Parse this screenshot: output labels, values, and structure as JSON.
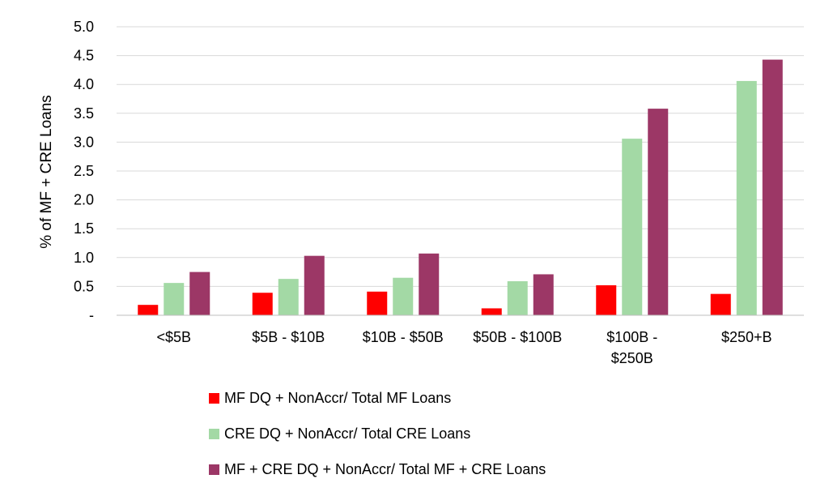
{
  "chart_data": {
    "type": "bar",
    "title": "",
    "xlabel": "",
    "ylabel": "% of MF + CRE Loans",
    "ylim": [
      0,
      5
    ],
    "y_ticks": [
      "-",
      "0.5",
      "1.0",
      "1.5",
      "2.0",
      "2.5",
      "3.0",
      "3.5",
      "4.0",
      "4.5",
      "5.0"
    ],
    "y_tick_values": [
      0,
      0.5,
      1.0,
      1.5,
      2.0,
      2.5,
      3.0,
      3.5,
      4.0,
      4.5,
      5.0
    ],
    "grid": true,
    "legend_position": "bottom",
    "categories": [
      [
        "<$5B"
      ],
      [
        "$5B - $10B"
      ],
      [
        "$10B - $50B"
      ],
      [
        "$50B - $100B"
      ],
      [
        "$100B -",
        "$250B"
      ],
      [
        "$250+B"
      ]
    ],
    "series": [
      {
        "name": "MF DQ + NonAccr/ Total MF Loans",
        "color": "#ff0000",
        "values": [
          0.18,
          0.39,
          0.41,
          0.12,
          0.52,
          0.37
        ]
      },
      {
        "name": "CRE DQ + NonAccr/ Total CRE Loans",
        "color": "#a3d9a5",
        "values": [
          0.56,
          0.63,
          0.65,
          0.59,
          3.06,
          4.06
        ]
      },
      {
        "name": "MF + CRE DQ + NonAccr/ Total MF + CRE Loans",
        "color": "#9c3766",
        "values": [
          0.75,
          1.03,
          1.07,
          0.71,
          3.58,
          4.43
        ]
      }
    ]
  }
}
